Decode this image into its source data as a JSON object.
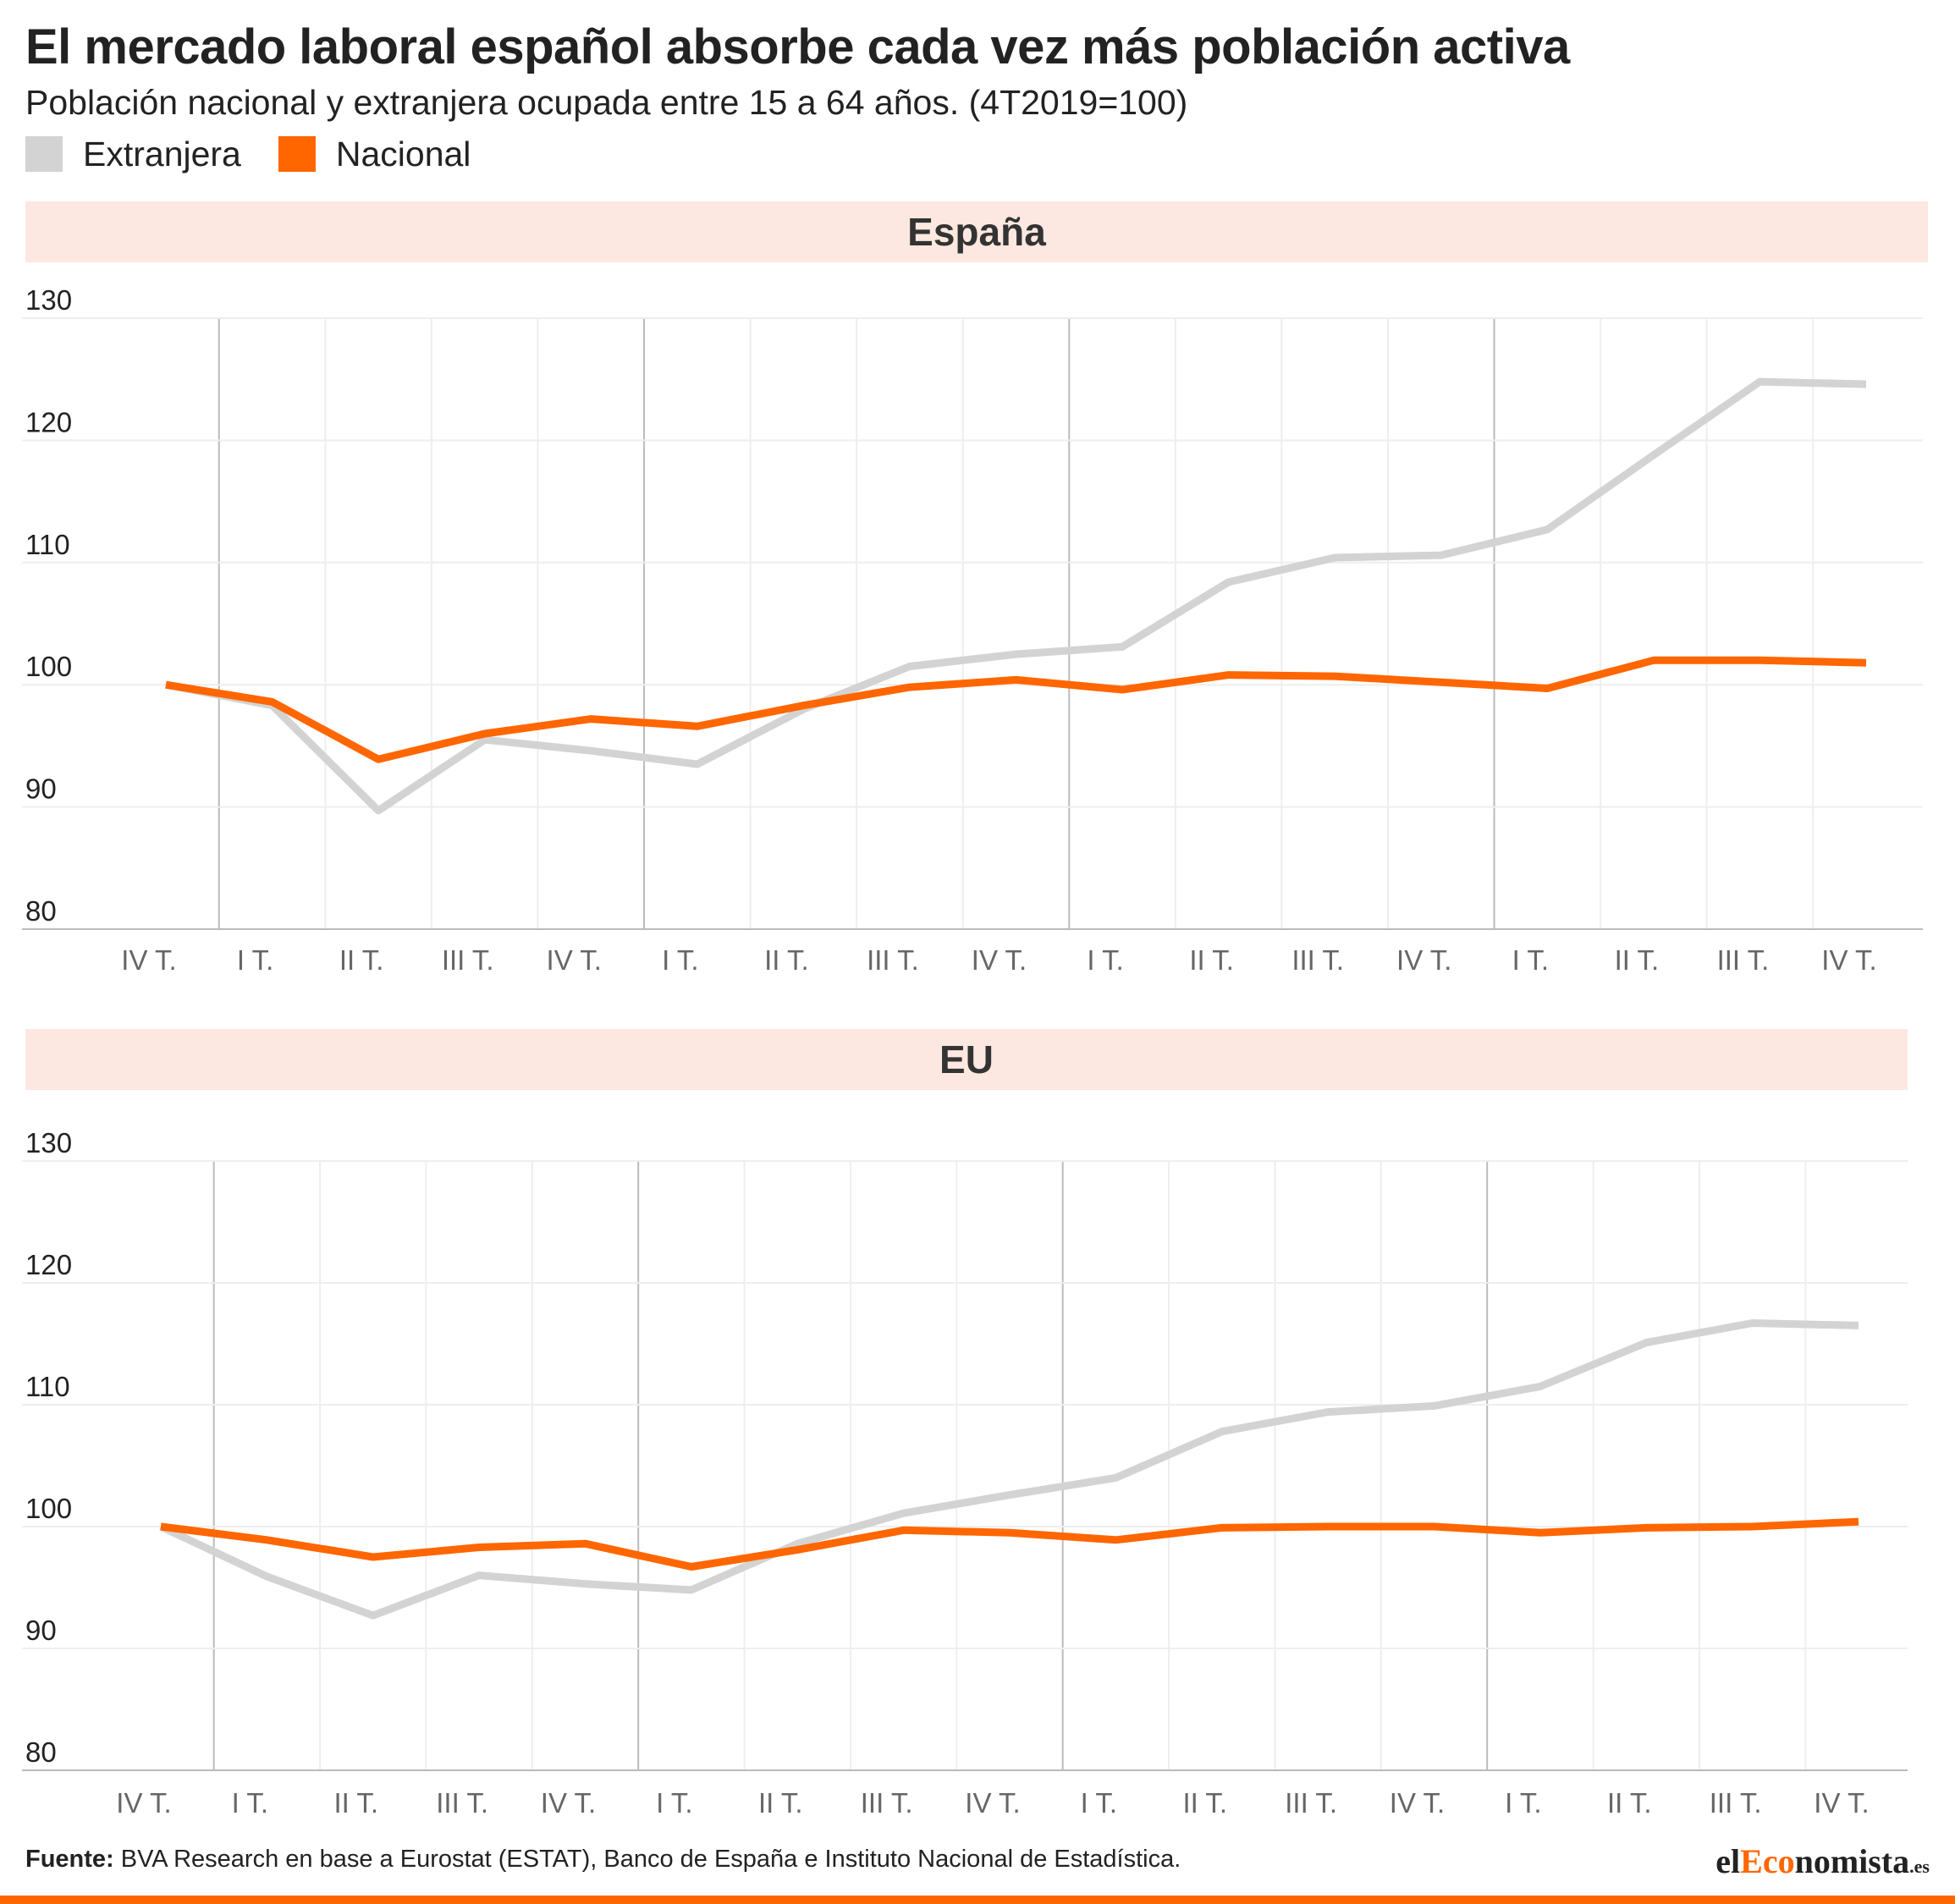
{
  "title": "El mercado laboral español absorbe cada vez más población activa",
  "subtitle": "Población nacional y extranjera ocupada entre 15 a 64 años. (4T2019=100)",
  "legend": [
    {
      "label": "Extranjera",
      "color": "#d3d3d3"
    },
    {
      "label": "Nacional",
      "color": "#ff6600"
    }
  ],
  "colors": {
    "extranjera": "#d3d3d3",
    "nacional": "#ff6600",
    "header_bg": "#fce8e0",
    "grid": "#eeeeee",
    "year_divider": "#bbbbbb"
  },
  "chart_data": [
    {
      "type": "line",
      "title": "España",
      "categories": [
        "IV T.",
        "I T.",
        "II T.",
        "III T.",
        "IV T.",
        "I T.",
        "II T.",
        "III T.",
        "IV T.",
        "I T.",
        "II T.",
        "III T.",
        "IV T.",
        "I T.",
        "II T.",
        "III T.",
        "IV T."
      ],
      "yticks": [
        80,
        90,
        100,
        110,
        120,
        130
      ],
      "ylim": [
        80,
        130
      ],
      "grid": true,
      "series": [
        {
          "name": "Extranjera",
          "color": "#d3d3d3",
          "values": [
            100,
            98.3,
            89.7,
            95.5,
            94.6,
            93.5,
            98.0,
            101.5,
            102.5,
            103.1,
            108.4,
            110.4,
            110.6,
            112.7,
            118.8,
            124.8,
            124.6
          ]
        },
        {
          "name": "Nacional",
          "color": "#ff6600",
          "values": [
            100,
            98.6,
            93.9,
            96.0,
            97.2,
            96.6,
            98.3,
            99.8,
            100.4,
            99.6,
            100.8,
            100.7,
            100.2,
            99.7,
            102.0,
            102.0,
            101.8
          ]
        }
      ]
    },
    {
      "type": "line",
      "title": "EU",
      "categories": [
        "IV T.",
        "I T.",
        "II T.",
        "III T.",
        "IV T.",
        "I T.",
        "II T.",
        "III T.",
        "IV T.",
        "I T.",
        "II T.",
        "III T.",
        "IV T.",
        "I T.",
        "II T.",
        "III T.",
        "IV T."
      ],
      "yticks": [
        80,
        90,
        100,
        110,
        120,
        130
      ],
      "ylim": [
        80,
        130
      ],
      "grid": true,
      "series": [
        {
          "name": "Extranjera",
          "color": "#d3d3d3",
          "values": [
            100,
            95.9,
            92.7,
            96.0,
            95.3,
            94.8,
            98.6,
            101.1,
            102.6,
            104.0,
            107.8,
            109.4,
            109.9,
            111.5,
            115.1,
            116.7,
            116.5
          ]
        },
        {
          "name": "Nacional",
          "color": "#ff6600",
          "values": [
            100,
            98.9,
            97.5,
            98.3,
            98.6,
            96.7,
            98.1,
            99.7,
            99.5,
            98.9,
            99.9,
            100.0,
            100.0,
            99.5,
            99.9,
            100.0,
            100.4
          ]
        }
      ]
    }
  ],
  "footer": {
    "label": "Fuente:",
    "text": " BVA Research en base a Eurostat (ESTAT), Banco de España e Instituto Nacional de Estadística."
  },
  "logo": {
    "part1": "el",
    "part2": "Eco",
    "part3": "nomista",
    "part4": ".es"
  }
}
